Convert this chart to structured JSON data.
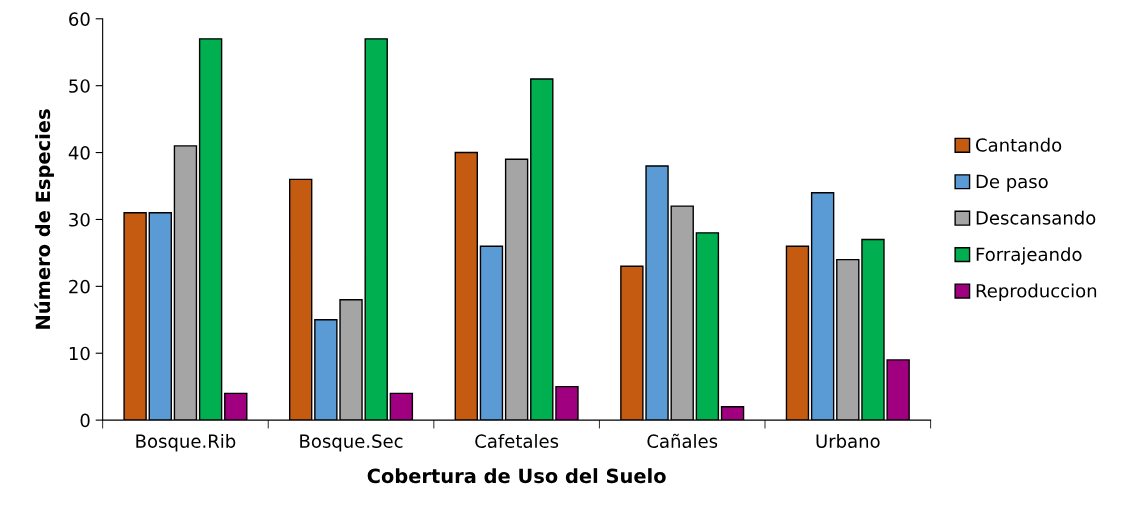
{
  "chart_data": {
    "type": "bar",
    "xlabel": "Cobertura de Uso del Suelo",
    "ylabel": "Número de Especies",
    "categories": [
      "Bosque.Rib",
      "Bosque.Sec",
      "Cafetales",
      "Cañales",
      "Urbano"
    ],
    "series": [
      {
        "name": "Cantando",
        "color": "#c55a11",
        "values": [
          31,
          36,
          40,
          23,
          26
        ]
      },
      {
        "name": "De paso",
        "color": "#5b9bd5",
        "values": [
          31,
          15,
          26,
          38,
          34
        ]
      },
      {
        "name": "Descansando",
        "color": "#a5a5a5",
        "values": [
          41,
          18,
          39,
          32,
          24
        ]
      },
      {
        "name": "Forrajeando",
        "color": "#00b050",
        "values": [
          57,
          57,
          51,
          28,
          27
        ]
      },
      {
        "name": "Reproduccion",
        "color": "#a0007f",
        "values": [
          4,
          4,
          5,
          2,
          9
        ]
      }
    ],
    "ylim": [
      0,
      60
    ],
    "yticks": [
      0,
      10,
      20,
      30,
      40,
      50,
      60
    ],
    "grid": false,
    "legend": "right"
  }
}
